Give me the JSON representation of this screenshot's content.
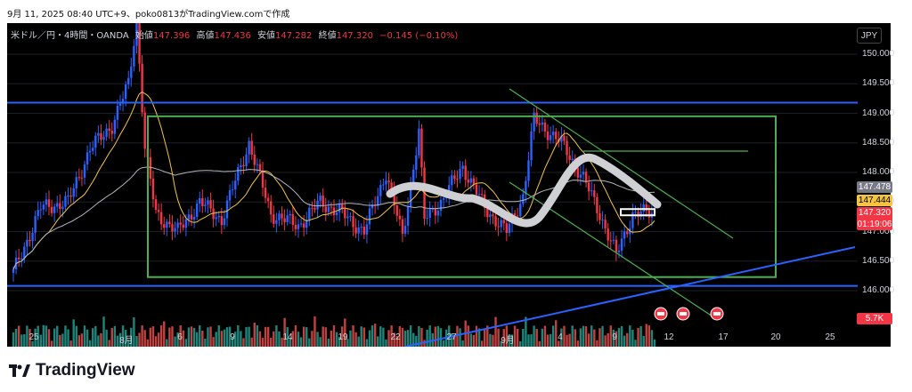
{
  "header": {
    "caption": "9月 11, 2025 08:40 UTC+9、poko0813がTradingView.comで作成"
  },
  "legend": {
    "symbol": "米ドル／円・4時間・OANDA",
    "open_label": "始値",
    "open": "147.396",
    "high_label": "高値",
    "high": "147.436",
    "low_label": "安値",
    "low": "147.282",
    "close_label": "終値",
    "close": "147.320",
    "change": "−0.145 (−0.10%)"
  },
  "currency_button": "JPY",
  "price_tags": {
    "gray": "147.478",
    "yellow": "147.444",
    "red_price": "147.320",
    "red_timer": "01:19:06",
    "volume": "5.7K"
  },
  "footer": {
    "brand": "TradingView"
  },
  "colors": {
    "up": "#2962ff",
    "down": "#f23645",
    "rect": "#4caf50",
    "hline": "#2962ff",
    "ma_fast": "#f5c542",
    "ma_slow": "#b2b5be",
    "vol_up": "#26a69a",
    "vol_down": "#ef5350"
  },
  "chart_data": {
    "type": "candlestick",
    "title": "米ドル／円・4時間・OANDA",
    "ylim": [
      145.8,
      150.6
    ],
    "y_ticks": [
      146.0,
      146.5,
      147.0,
      147.5,
      148.0,
      148.5,
      149.0,
      149.5,
      150.0
    ],
    "y_tick_labels": [
      "146.000",
      "146.500",
      "147.000",
      "147.500",
      "148.000",
      "148.500",
      "149.000",
      "149.500",
      "150.000"
    ],
    "x_tick_labels": [
      "25",
      "8月",
      "6",
      "9",
      "14",
      "19",
      "22",
      "27",
      "9月",
      "4",
      "9",
      "12",
      "17",
      "20",
      "25"
    ],
    "anchors": [
      {
        "i": 0,
        "p": 146.3
      },
      {
        "i": 10,
        "p": 147.4
      },
      {
        "i": 20,
        "p": 147.5
      },
      {
        "i": 28,
        "p": 148.4
      },
      {
        "i": 36,
        "p": 148.8
      },
      {
        "i": 42,
        "p": 149.5
      },
      {
        "i": 45,
        "p": 150.6
      },
      {
        "i": 48,
        "p": 148.4
      },
      {
        "i": 52,
        "p": 147.3
      },
      {
        "i": 60,
        "p": 147.0
      },
      {
        "i": 68,
        "p": 147.5
      },
      {
        "i": 76,
        "p": 147.2
      },
      {
        "i": 86,
        "p": 148.5
      },
      {
        "i": 94,
        "p": 147.3
      },
      {
        "i": 104,
        "p": 147.1
      },
      {
        "i": 112,
        "p": 147.5
      },
      {
        "i": 120,
        "p": 147.3
      },
      {
        "i": 128,
        "p": 147.0
      },
      {
        "i": 136,
        "p": 148.0
      },
      {
        "i": 142,
        "p": 146.9
      },
      {
        "i": 148,
        "p": 148.7
      },
      {
        "i": 150,
        "p": 147.2
      },
      {
        "i": 156,
        "p": 147.5
      },
      {
        "i": 164,
        "p": 148.1
      },
      {
        "i": 172,
        "p": 147.4
      },
      {
        "i": 180,
        "p": 147.0
      },
      {
        "i": 186,
        "p": 147.6
      },
      {
        "i": 190,
        "p": 148.9
      },
      {
        "i": 200,
        "p": 148.5
      },
      {
        "i": 208,
        "p": 147.9
      },
      {
        "i": 214,
        "p": 147.3
      },
      {
        "i": 220,
        "p": 146.6
      },
      {
        "i": 226,
        "p": 147.3
      },
      {
        "i": 234,
        "p": 147.32
      }
    ],
    "support_box": {
      "top": 148.95,
      "bottom": 146.23
    },
    "horizontal_lines": [
      149.18,
      146.08
    ],
    "open_price_box": 147.32
  }
}
